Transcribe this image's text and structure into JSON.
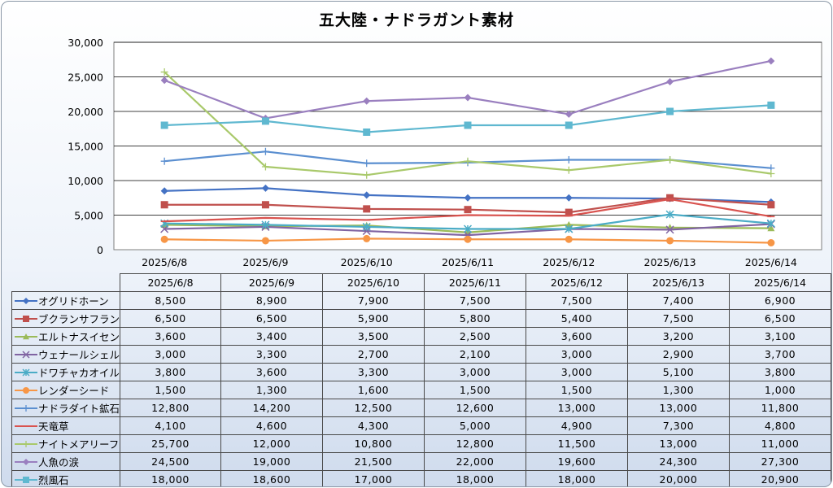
{
  "chart_data": {
    "type": "line",
    "title": "五大陸・ナドラガント素材",
    "categories": [
      "2025/6/8",
      "2025/6/9",
      "2025/6/10",
      "2025/6/11",
      "2025/6/12",
      "2025/6/13",
      "2025/6/14"
    ],
    "ylim": [
      0,
      30000
    ],
    "yticks": [
      "0",
      "5,000",
      "10,000",
      "15,000",
      "20,000",
      "25,000",
      "30,000"
    ],
    "grid": true,
    "legend": "data-table",
    "series": [
      {
        "name": "オグリドホーン",
        "color": "#4472c4",
        "marker": "diamond",
        "values": [
          8500,
          8900,
          7900,
          7500,
          7500,
          7400,
          6900
        ],
        "labels": [
          "8,500",
          "8,900",
          "7,900",
          "7,500",
          "7,500",
          "7,400",
          "6,900"
        ]
      },
      {
        "name": "ブクランサフラン",
        "color": "#c0504d",
        "marker": "square",
        "values": [
          6500,
          6500,
          5900,
          5800,
          5400,
          7500,
          6500
        ],
        "labels": [
          "6,500",
          "6,500",
          "5,900",
          "5,800",
          "5,400",
          "7,500",
          "6,500"
        ]
      },
      {
        "name": "エルトナスイセン",
        "color": "#9bbb59",
        "marker": "triangle",
        "values": [
          3600,
          3400,
          3500,
          2500,
          3600,
          3200,
          3100
        ],
        "labels": [
          "3,600",
          "3,400",
          "3,500",
          "2,500",
          "3,600",
          "3,200",
          "3,100"
        ]
      },
      {
        "name": "ウェナールシェル",
        "color": "#8064a2",
        "marker": "x",
        "values": [
          3000,
          3300,
          2700,
          2100,
          3000,
          2900,
          3700
        ],
        "labels": [
          "3,000",
          "3,300",
          "2,700",
          "2,100",
          "3,000",
          "2,900",
          "3,700"
        ]
      },
      {
        "name": "ドワチャカオイル",
        "color": "#4bacc6",
        "marker": "star",
        "values": [
          3800,
          3600,
          3300,
          3000,
          3000,
          5100,
          3800
        ],
        "labels": [
          "3,800",
          "3,600",
          "3,300",
          "3,000",
          "3,000",
          "5,100",
          "3,800"
        ]
      },
      {
        "name": "レンダーシード",
        "color": "#f79646",
        "marker": "circle",
        "values": [
          1500,
          1300,
          1600,
          1500,
          1500,
          1300,
          1000
        ],
        "labels": [
          "1,500",
          "1,300",
          "1,600",
          "1,500",
          "1,500",
          "1,300",
          "1,000"
        ]
      },
      {
        "name": "ナドラダイト鉱石",
        "color": "#5b8fd0",
        "marker": "plus",
        "values": [
          12800,
          14200,
          12500,
          12600,
          13000,
          13000,
          11800
        ],
        "labels": [
          "12,800",
          "14,200",
          "12,500",
          "12,600",
          "13,000",
          "13,000",
          "11,800"
        ]
      },
      {
        "name": "天竜草",
        "color": "#d9534f",
        "marker": "dash",
        "values": [
          4100,
          4600,
          4300,
          5000,
          4900,
          7300,
          4800
        ],
        "labels": [
          "4,100",
          "4,600",
          "4,300",
          "5,000",
          "4,900",
          "7,300",
          "4,800"
        ]
      },
      {
        "name": "ナイトメアリーフ",
        "color": "#a9c96b",
        "marker": "plus",
        "values": [
          25700,
          12000,
          10800,
          12800,
          11500,
          13000,
          11000
        ],
        "labels": [
          "25,700",
          "12,000",
          "10,800",
          "12,800",
          "11,500",
          "13,000",
          "11,000"
        ]
      },
      {
        "name": "人魚の涙",
        "color": "#9a7fbf",
        "marker": "diamond",
        "values": [
          24500,
          19000,
          21500,
          22000,
          19600,
          24300,
          27300
        ],
        "labels": [
          "24,500",
          "19,000",
          "21,500",
          "22,000",
          "19,600",
          "24,300",
          "27,300"
        ]
      },
      {
        "name": "烈風石",
        "color": "#5fb8d0",
        "marker": "square",
        "values": [
          18000,
          18600,
          17000,
          18000,
          18000,
          20000,
          20900
        ],
        "labels": [
          "18,000",
          "18,600",
          "17,000",
          "18,000",
          "18,000",
          "20,000",
          "20,900"
        ]
      }
    ]
  }
}
